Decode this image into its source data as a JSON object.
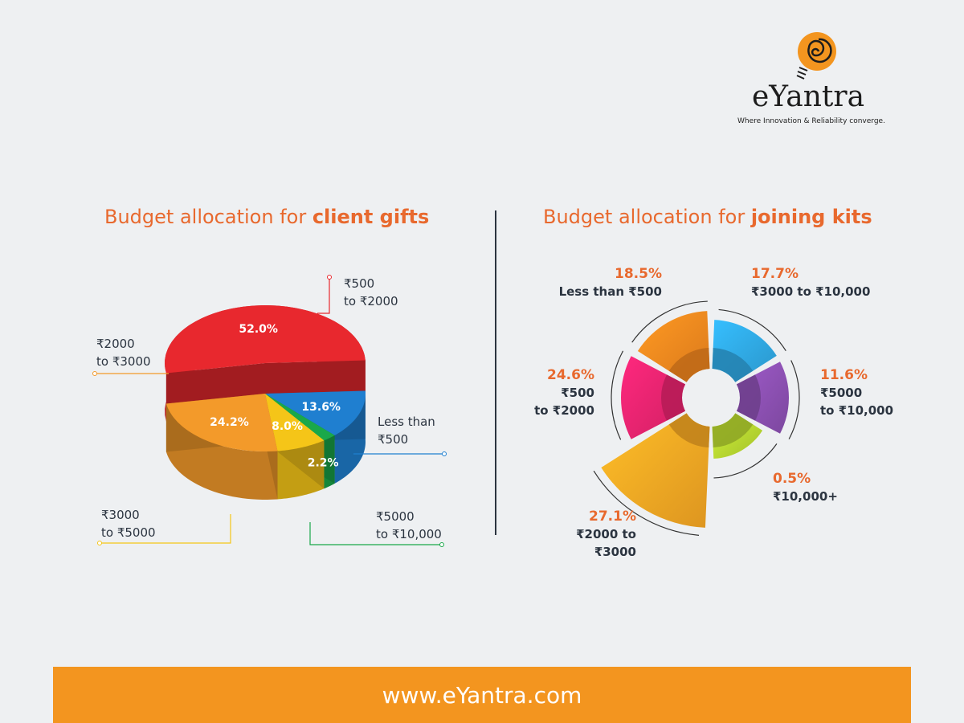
{
  "brand": {
    "name": "eYantra",
    "tagline": "Where Innovation & Reliability converge.",
    "website": "www.eYantra.com",
    "accent": "#f3951f"
  },
  "chart_data": [
    {
      "type": "pie",
      "title_prefix": "Budget allocation for ",
      "title_bold": "client gifts",
      "categories": [
        "₹500 to ₹2000",
        "Less than ₹500",
        "₹5000 to ₹10,000",
        "₹3000 to ₹5000",
        "₹2000 to ₹3000"
      ],
      "values": [
        52.0,
        13.6,
        2.2,
        8.0,
        24.2
      ],
      "value_labels": [
        "52.0%",
        "13.6%",
        "2.2%",
        "8.0%",
        "24.2%"
      ],
      "labels": [
        [
          "₹500",
          "to ₹2000"
        ],
        [
          "Less than",
          "₹500"
        ],
        [
          "₹5000",
          "to ₹10,000"
        ],
        [
          "₹3000",
          "to ₹5000"
        ],
        [
          "₹2000",
          "to ₹3000"
        ]
      ],
      "colors": [
        "#e8282e",
        "#1f7fd0",
        "#1aa84a",
        "#f5c518",
        "#f39a2a"
      ]
    },
    {
      "type": "pie",
      "title_prefix": "Budget allocation for ",
      "title_bold": "joining kits",
      "categories": [
        "₹3000 to ₹10,000",
        "₹5000 to ₹10,000",
        "₹10,000+",
        "₹2000 to ₹3000",
        "₹500 to ₹2000",
        "Less than ₹500"
      ],
      "values": [
        17.7,
        11.6,
        0.5,
        27.1,
        24.6,
        18.5
      ],
      "value_labels": [
        "17.7%",
        "11.6%",
        "0.5%",
        "27.1%",
        "24.6%",
        "18.5%"
      ],
      "labels": [
        [
          "₹3000 to ₹10,000"
        ],
        [
          "₹5000",
          "to ₹10,000"
        ],
        [
          "₹10,000+"
        ],
        [
          "₹2000 to ₹3000"
        ],
        [
          "₹500",
          "to ₹2000"
        ],
        [
          "Less than ₹500"
        ]
      ],
      "colors": [
        "#2fa6e0",
        "#8a4fb0",
        "#b5d430",
        "#f5a623",
        "#e8236e",
        "#f2861e"
      ]
    }
  ]
}
